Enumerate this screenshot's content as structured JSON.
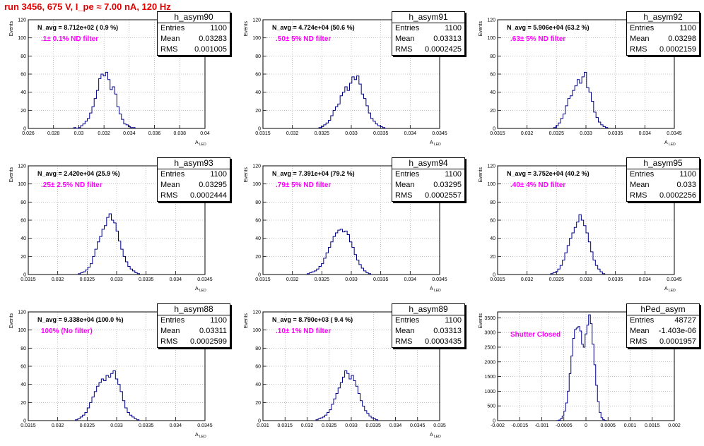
{
  "header": {
    "title": "run 3456,   675 V, I_pe ≈ 7.00 nA, 120 Hz"
  },
  "colors": {
    "histogram": "#00008b",
    "title": "#e00000",
    "filter_label": "#ff00ff",
    "grid": "#888888"
  },
  "chart_data": [
    {
      "type": "histogram",
      "name": "h_asym90",
      "navg": "N_avg = 8.712e+02 ( 0.9 %)",
      "filter": ".1± 0.1% ND filter",
      "entries": "1100",
      "mean": "0.03283",
      "rms": "0.001005",
      "xlabel": "A",
      "xlabel_sub": "LED",
      "ylabel": "Events",
      "xlim": [
        0.026,
        0.04
      ],
      "ylim": [
        0,
        120
      ],
      "grid": true,
      "xticks": [
        "0.026",
        "0.028",
        "0.03",
        "0.032",
        "0.034",
        "0.036",
        "0.038",
        "0.04"
      ],
      "yticks": [
        "0",
        "20",
        "40",
        "60",
        "80",
        "100",
        "120"
      ],
      "bins": {
        "x0": 0.0296,
        "width": 0.00018,
        "counts": [
          1,
          0,
          1,
          3,
          5,
          8,
          11,
          17,
          24,
          33,
          42,
          55,
          60,
          58,
          62,
          54,
          43,
          46,
          38,
          24,
          16,
          10,
          5,
          4,
          2,
          1,
          1
        ]
      }
    },
    {
      "type": "histogram",
      "name": "h_asym91",
      "navg": "N_avg = 4.724e+04 (50.6 %)",
      "filter": ".50± 5% ND filter",
      "entries": "1100",
      "mean": "0.03313",
      "rms": "0.0002425",
      "xlabel": "A",
      "xlabel_sub": "LED",
      "ylabel": "Events",
      "xlim": [
        0.0315,
        0.0345
      ],
      "ylim": [
        0,
        120
      ],
      "grid": true,
      "xticks": [
        "0.0315",
        "0.032",
        "0.0325",
        "0.033",
        "0.0335",
        "0.034",
        "0.0345"
      ],
      "yticks": [
        "0",
        "20",
        "40",
        "60",
        "80",
        "100",
        "120"
      ],
      "bins": {
        "x0": 0.03245,
        "width": 4e-05,
        "counts": [
          1,
          2,
          4,
          6,
          9,
          14,
          20,
          24,
          27,
          36,
          40,
          46,
          42,
          50,
          57,
          54,
          58,
          49,
          38,
          33,
          25,
          17,
          11,
          8,
          5,
          3,
          2,
          1
        ]
      }
    },
    {
      "type": "histogram",
      "name": "h_asym92",
      "navg": "N_avg = 5.906e+04 (63.2 %)",
      "filter": ".63± 5% ND filter",
      "entries": "1100",
      "mean": "0.03298",
      "rms": "0.0002159",
      "xlabel": "A",
      "xlabel_sub": "LED",
      "ylabel": "Events",
      "xlim": [
        0.0315,
        0.0345
      ],
      "ylim": [
        0,
        120
      ],
      "grid": true,
      "xticks": [
        "0.0315",
        "0.032",
        "0.0325",
        "0.033",
        "0.0335",
        "0.034",
        "0.0345"
      ],
      "yticks": [
        "0",
        "20",
        "40",
        "60",
        "80",
        "100",
        "120"
      ],
      "bins": {
        "x0": 0.03245,
        "width": 4e-05,
        "counts": [
          1,
          3,
          6,
          11,
          16,
          25,
          33,
          36,
          42,
          47,
          54,
          50,
          57,
          62,
          45,
          40,
          30,
          18,
          12,
          7,
          4,
          2,
          1
        ]
      }
    },
    {
      "type": "histogram",
      "name": "h_asym93",
      "navg": "N_avg = 2.420e+04 (25.9 %)",
      "filter": ".25± 2.5% ND filter",
      "entries": "1100",
      "mean": "0.03295",
      "rms": "0.0002444",
      "xlabel": "A",
      "xlabel_sub": "LED",
      "ylabel": "Events",
      "xlim": [
        0.0315,
        0.0345
      ],
      "ylim": [
        0,
        120
      ],
      "grid": true,
      "xticks": [
        "0.0315",
        "0.032",
        "0.0325",
        "0.033",
        "0.0335",
        "0.034",
        "0.0345"
      ],
      "yticks": [
        "0",
        "20",
        "40",
        "60",
        "80",
        "100",
        "120"
      ],
      "bins": {
        "x0": 0.03235,
        "width": 4e-05,
        "counts": [
          1,
          2,
          3,
          5,
          8,
          12,
          20,
          28,
          36,
          42,
          50,
          54,
          63,
          67,
          60,
          57,
          48,
          37,
          28,
          20,
          14,
          9,
          6,
          4,
          2,
          1
        ]
      }
    },
    {
      "type": "histogram",
      "name": "h_asym94",
      "navg": "N_avg = 7.391e+04 (79.2 %)",
      "filter": ".79± 5% ND filter",
      "entries": "1100",
      "mean": "0.03295",
      "rms": "0.0002557",
      "xlabel": "A",
      "xlabel_sub": "LED",
      "ylabel": "Events",
      "xlim": [
        0.0315,
        0.0345
      ],
      "ylim": [
        0,
        120
      ],
      "grid": true,
      "xticks": [
        "0.0315",
        "0.032",
        "0.0325",
        "0.033",
        "0.0335",
        "0.034",
        "0.0345"
      ],
      "yticks": [
        "0",
        "20",
        "40",
        "60",
        "80",
        "100",
        "120"
      ],
      "bins": {
        "x0": 0.03225,
        "width": 4e-05,
        "counts": [
          1,
          2,
          3,
          4,
          6,
          9,
          12,
          18,
          24,
          30,
          36,
          42,
          46,
          49,
          50,
          47,
          48,
          44,
          36,
          30,
          22,
          16,
          11,
          7,
          4,
          2,
          1
        ]
      }
    },
    {
      "type": "histogram",
      "name": "h_asym95",
      "navg": "N_avg = 3.752e+04 (40.2 %)",
      "filter": ".40± 4% ND filter",
      "entries": "1100",
      "mean": "0.033",
      "rms": "0.0002256",
      "xlabel": "A",
      "xlabel_sub": "LED",
      "ylabel": "Events",
      "xlim": [
        0.0315,
        0.0345
      ],
      "ylim": [
        0,
        120
      ],
      "grid": true,
      "xticks": [
        "0.0315",
        "0.032",
        "0.0325",
        "0.033",
        "0.0335",
        "0.034",
        "0.0345"
      ],
      "yticks": [
        "0",
        "20",
        "40",
        "60",
        "80",
        "100",
        "120"
      ],
      "bins": {
        "x0": 0.0324,
        "width": 4e-05,
        "counts": [
          1,
          2,
          3,
          6,
          10,
          16,
          24,
          32,
          40,
          46,
          52,
          58,
          66,
          60,
          54,
          46,
          36,
          25,
          16,
          10,
          6,
          3,
          1
        ]
      }
    },
    {
      "type": "histogram",
      "name": "h_asym88",
      "navg": "N_avg = 9.338e+04 (100.0 %)",
      "filter": "100% (No filter)",
      "entries": "1100",
      "mean": "0.03311",
      "rms": "0.0002599",
      "xlabel": "A",
      "xlabel_sub": "LED",
      "ylabel": "Events",
      "xlim": [
        0.0315,
        0.0345
      ],
      "ylim": [
        0,
        120
      ],
      "grid": true,
      "xticks": [
        "0.0315",
        "0.032",
        "0.0325",
        "0.033",
        "0.0335",
        "0.034",
        "0.0345"
      ],
      "yticks": [
        "0",
        "20",
        "40",
        "60",
        "80",
        "100",
        "120"
      ],
      "bins": {
        "x0": 0.0323,
        "width": 4e-05,
        "counts": [
          1,
          2,
          4,
          6,
          9,
          14,
          20,
          26,
          32,
          38,
          42,
          46,
          44,
          50,
          48,
          52,
          55,
          46,
          40,
          32,
          22,
          14,
          9,
          6,
          4,
          2,
          1
        ]
      }
    },
    {
      "type": "histogram",
      "name": "h_asym89",
      "navg": "N_avg = 8.790e+03 ( 9.4 %)",
      "filter": ".10± 1% ND filter",
      "entries": "1100",
      "mean": "0.03313",
      "rms": "0.0003435",
      "xlabel": "A",
      "xlabel_sub": "LED",
      "ylabel": "Events",
      "xlim": [
        0.031,
        0.035
      ],
      "ylim": [
        0,
        120
      ],
      "grid": true,
      "xticks": [
        "0.031",
        "0.0315",
        "0.032",
        "0.0325",
        "0.033",
        "0.0335",
        "0.034",
        "0.0345",
        "0.035"
      ],
      "yticks": [
        "0",
        "20",
        "40",
        "60",
        "80",
        "100",
        "120"
      ],
      "bins": {
        "x0": 0.0322,
        "width": 5e-05,
        "counts": [
          1,
          2,
          3,
          4,
          6,
          9,
          12,
          18,
          24,
          30,
          36,
          42,
          48,
          55,
          52,
          46,
          50,
          44,
          38,
          30,
          22,
          16,
          11,
          8,
          5,
          3,
          2,
          1
        ]
      }
    },
    {
      "type": "histogram",
      "name": "hPed_asym",
      "navg": "",
      "filter": "Shutter Closed",
      "entries": "48727",
      "mean": "-1.403e-06",
      "rms": "0.0001957",
      "xlabel": "",
      "xlabel_sub": "",
      "ylabel": "Events",
      "xlim": [
        -0.002,
        0.002
      ],
      "ylim": [
        0,
        3700
      ],
      "grid": true,
      "xticks": [
        "-0.002",
        "-0.0015",
        "-0.001",
        "-0.0005",
        "0",
        "0.0005",
        "0.001",
        "0.0015",
        "0.002"
      ],
      "yticks": [
        "0",
        "500",
        "1000",
        "1500",
        "2000",
        "2500",
        "3000",
        "3500"
      ],
      "bins": {
        "x0": -0.00066,
        "width": 4e-05,
        "counts": [
          5,
          20,
          60,
          150,
          320,
          600,
          1000,
          1600,
          2200,
          2800,
          3100,
          3150,
          3200,
          3050,
          2600,
          2500,
          2950,
          3250,
          3600,
          3300,
          2600,
          1900,
          1200,
          650,
          280,
          100,
          30,
          8
        ]
      }
    }
  ]
}
